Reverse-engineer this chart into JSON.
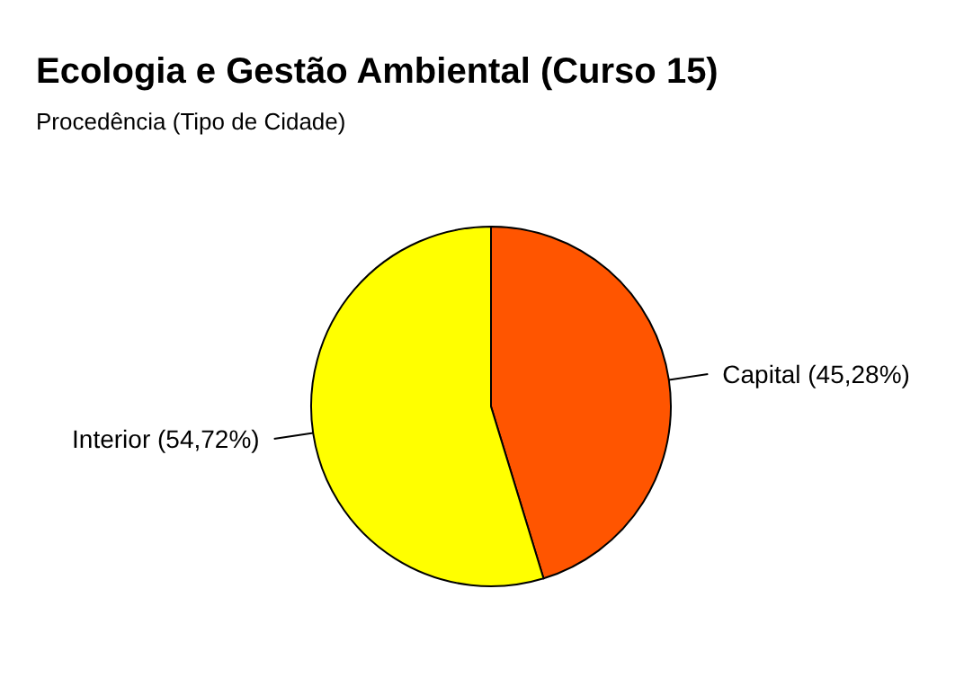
{
  "chart_data": {
    "type": "pie",
    "title": "Ecologia e Gestão Ambiental (Curso 15)",
    "subtitle": "Procedência (Tipo de Cidade)",
    "categories": [
      "Capital",
      "Interior"
    ],
    "values": [
      45.28,
      54.72
    ],
    "colors": [
      "#ff5500",
      "#ffff00"
    ],
    "value_labels": [
      "(45,28%)",
      "(54,72%)"
    ],
    "legend": false
  }
}
